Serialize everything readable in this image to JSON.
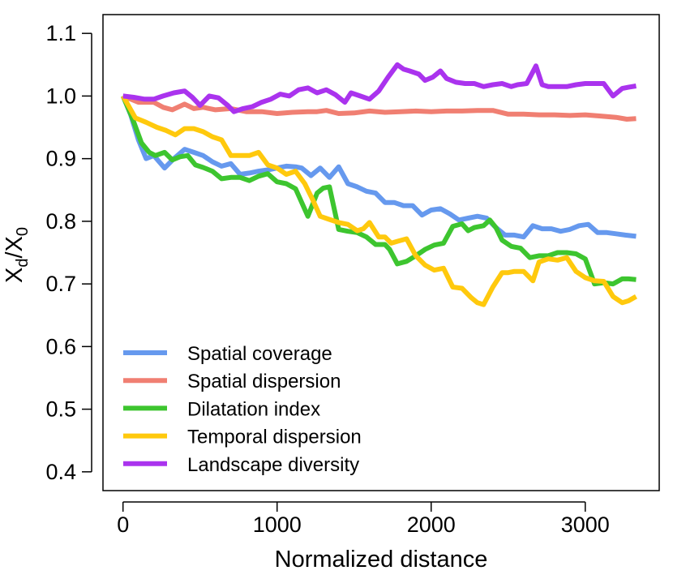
{
  "chart_data": {
    "type": "line",
    "xlabel": "Normalized distance",
    "ylabel": "X_d / X_0",
    "ylabel_parts": {
      "main": "X",
      "sub": "d",
      "slash": "/",
      "main2": "X",
      "sub2": "0"
    },
    "xlim": [
      -130,
      3480
    ],
    "ylim": [
      0.37,
      1.13
    ],
    "xticks": [
      0,
      1000,
      2000,
      3000
    ],
    "xtick_labels": [
      "0",
      "1000",
      "2000",
      "3000"
    ],
    "yticks": [
      0.4,
      0.5,
      0.6,
      0.7,
      0.8,
      0.9,
      1.0,
      1.1
    ],
    "ytick_labels": [
      "0.4",
      "0.5",
      "0.6",
      "0.7",
      "0.8",
      "0.9",
      "1.0",
      "1.1"
    ],
    "grid": false,
    "legend_position": "bottom-left",
    "series": [
      {
        "name": "Spatial coverage",
        "color": "#6699EE",
        "x": [
          0,
          50,
          100,
          150,
          200,
          270,
          330,
          400,
          460,
          520,
          580,
          640,
          700,
          760,
          820,
          880,
          940,
          1000,
          1060,
          1120,
          1160,
          1220,
          1280,
          1340,
          1400,
          1460,
          1520,
          1580,
          1640,
          1700,
          1760,
          1820,
          1880,
          1940,
          2000,
          2060,
          2120,
          2180,
          2240,
          2300,
          2360,
          2420,
          2480,
          2540,
          2600,
          2660,
          2720,
          2780,
          2840,
          2900,
          2960,
          3020,
          3080,
          3140,
          3200,
          3260,
          3330
        ],
        "y": [
          1.0,
          0.97,
          0.93,
          0.9,
          0.905,
          0.885,
          0.9,
          0.915,
          0.91,
          0.905,
          0.895,
          0.888,
          0.892,
          0.875,
          0.877,
          0.88,
          0.882,
          0.885,
          0.888,
          0.887,
          0.885,
          0.873,
          0.885,
          0.87,
          0.887,
          0.86,
          0.855,
          0.848,
          0.845,
          0.83,
          0.83,
          0.825,
          0.825,
          0.81,
          0.818,
          0.82,
          0.812,
          0.802,
          0.805,
          0.808,
          0.805,
          0.79,
          0.778,
          0.778,
          0.775,
          0.793,
          0.788,
          0.788,
          0.784,
          0.787,
          0.793,
          0.795,
          0.782,
          0.782,
          0.78,
          0.778,
          0.776
        ]
      },
      {
        "name": "Spatial dispersion",
        "color": "#F07F72",
        "x": [
          0,
          100,
          200,
          260,
          320,
          400,
          460,
          520,
          600,
          700,
          800,
          900,
          1000,
          1100,
          1200,
          1260,
          1320,
          1400,
          1500,
          1600,
          1700,
          1800,
          1900,
          2000,
          2100,
          2200,
          2300,
          2400,
          2500,
          2600,
          2700,
          2800,
          2900,
          3000,
          3100,
          3200,
          3270,
          3330
        ],
        "y": [
          1.0,
          0.99,
          0.99,
          0.982,
          0.978,
          0.987,
          0.98,
          0.982,
          0.978,
          0.98,
          0.975,
          0.975,
          0.972,
          0.974,
          0.975,
          0.975,
          0.977,
          0.972,
          0.973,
          0.976,
          0.974,
          0.975,
          0.976,
          0.975,
          0.976,
          0.976,
          0.977,
          0.977,
          0.971,
          0.971,
          0.97,
          0.97,
          0.969,
          0.97,
          0.968,
          0.966,
          0.963,
          0.964
        ]
      },
      {
        "name": "Dilatation index",
        "color": "#3DC52F",
        "x": [
          0,
          60,
          120,
          170,
          210,
          270,
          320,
          370,
          420,
          470,
          520,
          580,
          640,
          700,
          760,
          820,
          880,
          940,
          1000,
          1060,
          1120,
          1160,
          1200,
          1260,
          1300,
          1340,
          1400,
          1460,
          1520,
          1580,
          1640,
          1700,
          1730,
          1780,
          1840,
          1900,
          1960,
          2020,
          2080,
          2140,
          2200,
          2240,
          2280,
          2340,
          2380,
          2420,
          2460,
          2520,
          2580,
          2640,
          2700,
          2760,
          2820,
          2880,
          2940,
          3000,
          3060,
          3120,
          3180,
          3240,
          3280,
          3330
        ],
        "y": [
          1.0,
          0.965,
          0.925,
          0.91,
          0.905,
          0.91,
          0.898,
          0.903,
          0.905,
          0.89,
          0.886,
          0.88,
          0.868,
          0.87,
          0.87,
          0.865,
          0.872,
          0.876,
          0.863,
          0.86,
          0.852,
          0.83,
          0.808,
          0.845,
          0.853,
          0.855,
          0.787,
          0.784,
          0.782,
          0.775,
          0.763,
          0.763,
          0.755,
          0.732,
          0.736,
          0.745,
          0.755,
          0.762,
          0.765,
          0.792,
          0.796,
          0.785,
          0.79,
          0.793,
          0.802,
          0.79,
          0.77,
          0.76,
          0.757,
          0.742,
          0.745,
          0.745,
          0.75,
          0.75,
          0.748,
          0.74,
          0.7,
          0.702,
          0.7,
          0.708,
          0.708,
          0.707
        ]
      },
      {
        "name": "Temporal dispersion",
        "color": "#FFC90D",
        "x": [
          0,
          80,
          150,
          220,
          280,
          340,
          400,
          460,
          520,
          580,
          640,
          700,
          760,
          820,
          880,
          940,
          1000,
          1060,
          1120,
          1180,
          1230,
          1280,
          1340,
          1400,
          1460,
          1520,
          1560,
          1600,
          1660,
          1700,
          1740,
          1780,
          1840,
          1900,
          1960,
          2020,
          2080,
          2140,
          2200,
          2260,
          2300,
          2340,
          2400,
          2460,
          2500,
          2540,
          2600,
          2660,
          2700,
          2760,
          2820,
          2880,
          2940,
          3000,
          3060,
          3120,
          3180,
          3240,
          3280,
          3330
        ],
        "y": [
          1.0,
          0.965,
          0.958,
          0.95,
          0.945,
          0.938,
          0.948,
          0.948,
          0.943,
          0.935,
          0.93,
          0.905,
          0.905,
          0.905,
          0.91,
          0.89,
          0.885,
          0.875,
          0.88,
          0.86,
          0.835,
          0.808,
          0.803,
          0.798,
          0.795,
          0.785,
          0.788,
          0.798,
          0.775,
          0.775,
          0.765,
          0.768,
          0.772,
          0.745,
          0.73,
          0.722,
          0.725,
          0.695,
          0.693,
          0.678,
          0.67,
          0.667,
          0.695,
          0.718,
          0.718,
          0.72,
          0.72,
          0.705,
          0.735,
          0.74,
          0.738,
          0.742,
          0.72,
          0.71,
          0.705,
          0.704,
          0.68,
          0.67,
          0.673,
          0.68
        ]
      },
      {
        "name": "Landscape diversity",
        "color": "#AA33EE",
        "x": [
          0,
          70,
          140,
          200,
          260,
          330,
          400,
          450,
          500,
          560,
          620,
          680,
          720,
          780,
          840,
          900,
          960,
          1020,
          1080,
          1140,
          1200,
          1260,
          1320,
          1380,
          1440,
          1480,
          1540,
          1600,
          1660,
          1720,
          1780,
          1820,
          1860,
          1920,
          1960,
          2010,
          2060,
          2100,
          2160,
          2220,
          2280,
          2340,
          2400,
          2460,
          2520,
          2560,
          2620,
          2680,
          2720,
          2760,
          2820,
          2880,
          2940,
          3000,
          3060,
          3120,
          3180,
          3240,
          3280,
          3330
        ],
        "y": [
          1.0,
          0.998,
          0.995,
          0.995,
          1.0,
          1.005,
          1.008,
          0.998,
          0.985,
          1.0,
          0.997,
          0.985,
          0.975,
          0.98,
          0.983,
          0.99,
          0.995,
          1.003,
          1.0,
          1.01,
          1.013,
          1.005,
          1.01,
          1.002,
          0.99,
          1.005,
          1.0,
          0.995,
          1.008,
          1.03,
          1.05,
          1.043,
          1.04,
          1.035,
          1.025,
          1.03,
          1.04,
          1.028,
          1.022,
          1.02,
          1.02,
          1.015,
          1.018,
          1.02,
          1.015,
          1.018,
          1.02,
          1.048,
          1.018,
          1.015,
          1.015,
          1.015,
          1.018,
          1.02,
          1.02,
          1.02,
          1.0,
          1.012,
          1.014,
          1.016
        ]
      }
    ]
  }
}
